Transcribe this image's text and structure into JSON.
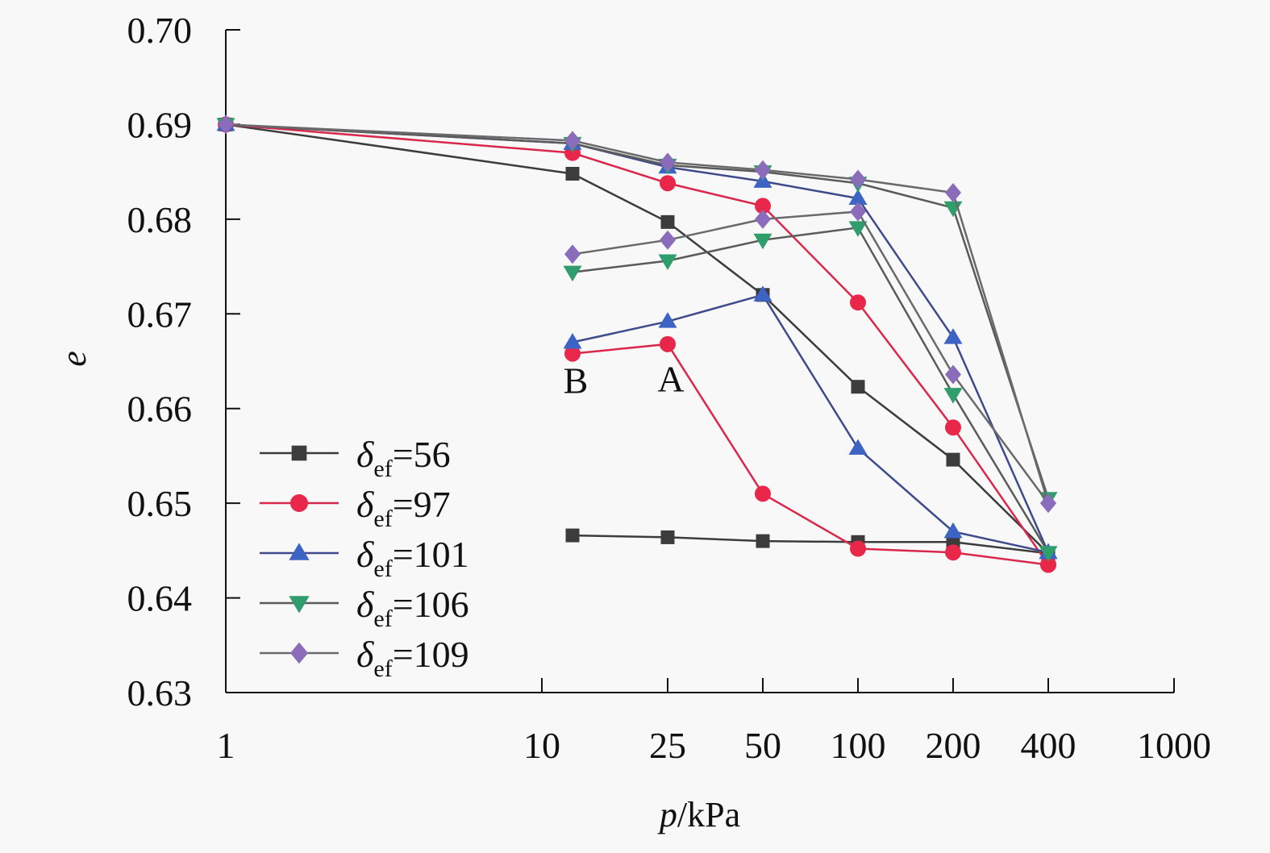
{
  "chart_data": {
    "type": "line",
    "title": "",
    "xlabel_italic": "p",
    "xlabel_rest": "/kPa",
    "ylabel": "e",
    "xscale": "log",
    "xlim": [
      1,
      1000
    ],
    "ylim": [
      0.63,
      0.7
    ],
    "x_ticks": [
      1,
      10,
      25,
      50,
      100,
      200,
      400,
      1000
    ],
    "x_tick_labels": [
      "1",
      "10",
      "25",
      "50",
      "100",
      "200",
      "400",
      "1000"
    ],
    "y_ticks": [
      0.63,
      0.64,
      0.65,
      0.66,
      0.67,
      0.68,
      0.69,
      0.7
    ],
    "y_tick_labels": [
      "0.63",
      "0.64",
      "0.65",
      "0.66",
      "0.67",
      "0.68",
      "0.69",
      "0.70"
    ],
    "grid": false,
    "legend_position": "bottom-left",
    "annotations": [
      {
        "text": "B",
        "x": 12.5,
        "y": 0.6635
      },
      {
        "text": "A",
        "x": 25,
        "y": 0.6637
      }
    ],
    "series": [
      {
        "name_symbol": "δ",
        "name_sub": "ef",
        "name_value": "=56",
        "marker": "square",
        "color": "#3c3c3c",
        "line_color": "#3c3c3c",
        "branches": [
          {
            "x": [
              1,
              12.5,
              25,
              50,
              100,
              200,
              400
            ],
            "y": [
              0.69,
              0.6848,
              0.6797,
              0.672,
              0.6623,
              0.6546,
              0.6447
            ]
          },
          {
            "x": [
              12.5,
              25,
              50,
              100,
              200,
              400
            ],
            "y": [
              0.6466,
              0.6464,
              0.646,
              0.6459,
              0.6459,
              0.6447
            ]
          }
        ]
      },
      {
        "name_symbol": "δ",
        "name_sub": "ef",
        "name_value": "=97",
        "marker": "circle",
        "color": "#e8274a",
        "line_color": "#d9284c",
        "branches": [
          {
            "x": [
              1,
              12.5,
              25,
              50,
              100,
              200,
              400
            ],
            "y": [
              0.69,
              0.687,
              0.6838,
              0.6814,
              0.6712,
              0.658,
              0.6435
            ]
          },
          {
            "x": [
              12.5,
              25,
              50,
              100,
              200,
              400
            ],
            "y": [
              0.6658,
              0.6668,
              0.651,
              0.6452,
              0.6448,
              0.6435
            ]
          }
        ]
      },
      {
        "name_symbol": "δ",
        "name_sub": "ef",
        "name_value": "=101",
        "marker": "triangle-up",
        "color": "#3d63c4",
        "line_color": "#3f4a8a",
        "branches": [
          {
            "x": [
              1,
              12.5,
              25,
              50,
              100,
              200,
              400
            ],
            "y": [
              0.69,
              0.688,
              0.6855,
              0.684,
              0.6822,
              0.6675,
              0.6448
            ]
          },
          {
            "x": [
              12.5,
              25,
              50,
              100,
              200,
              400
            ],
            "y": [
              0.667,
              0.6692,
              0.672,
              0.6558,
              0.647,
              0.6448
            ]
          }
        ]
      },
      {
        "name_symbol": "δ",
        "name_sub": "ef",
        "name_value": "=106",
        "marker": "triangle-down",
        "color": "#2f9e6c",
        "line_color": "#5a5a5a",
        "branches": [
          {
            "x": [
              1,
              12.5,
              25,
              50,
              100,
              200,
              400
            ],
            "y": [
              0.69,
              0.688,
              0.6857,
              0.685,
              0.6838,
              0.6812,
              0.6505
            ]
          },
          {
            "x": [
              12.5,
              25,
              50,
              100,
              200,
              400
            ],
            "y": [
              0.6744,
              0.6756,
              0.6778,
              0.6791,
              0.6615,
              0.6448
            ]
          }
        ]
      },
      {
        "name_symbol": "δ",
        "name_sub": "ef",
        "name_value": "=109",
        "marker": "diamond",
        "color": "#8b6cba",
        "line_color": "#6a6a6a",
        "branches": [
          {
            "x": [
              1,
              12.5,
              25,
              50,
              100,
              200,
              400
            ],
            "y": [
              0.69,
              0.6883,
              0.686,
              0.6852,
              0.6842,
              0.6828,
              0.65
            ]
          },
          {
            "x": [
              12.5,
              25,
              50,
              100,
              200,
              400
            ],
            "y": [
              0.6763,
              0.6778,
              0.68,
              0.6808,
              0.6636,
              0.65
            ]
          }
        ]
      }
    ]
  }
}
